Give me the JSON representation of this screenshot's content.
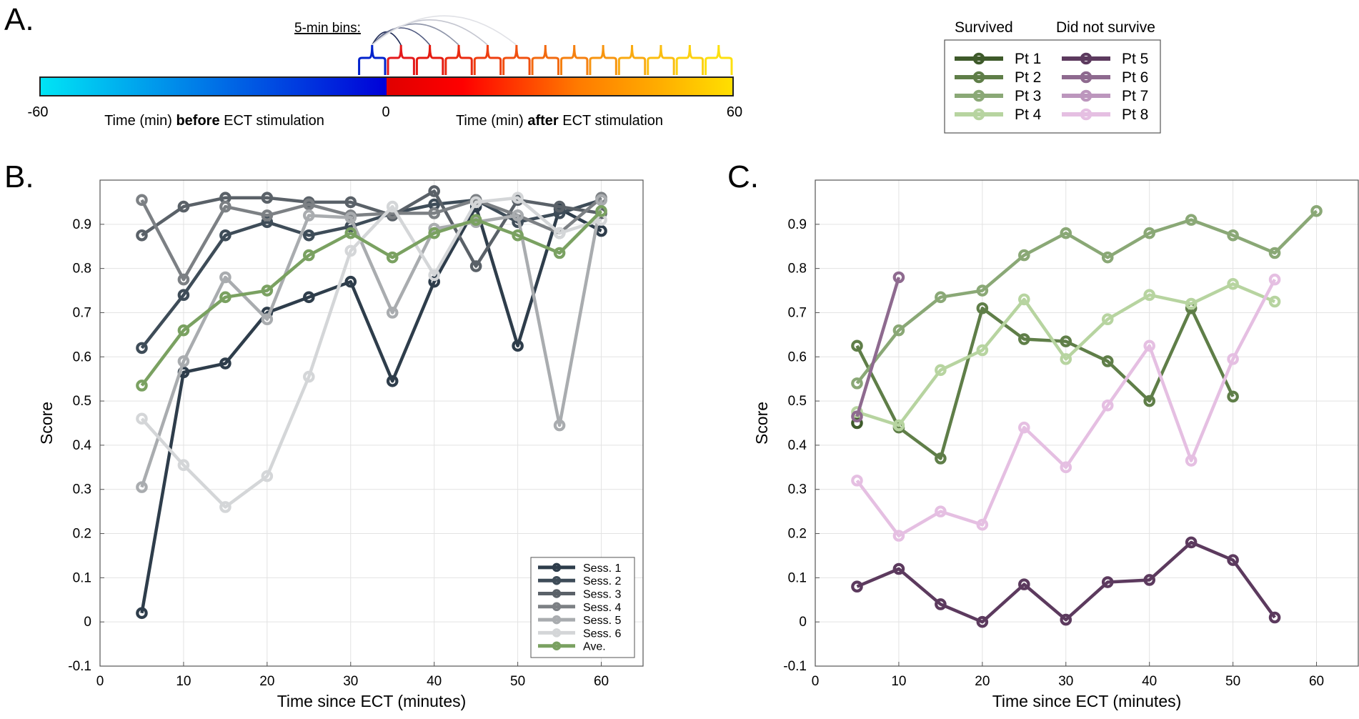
{
  "panel_labels": {
    "a": "A.",
    "b": "B.",
    "c": "C."
  },
  "timeline": {
    "bins_label": "5-min bins:",
    "tick_left": "-60",
    "tick_mid": "0",
    "tick_right": "60",
    "before_pre": "Time (min) ",
    "before_bold": "before",
    "before_post": " ECT stimulation",
    "after_pre": "Time (min) ",
    "after_bold": "after",
    "after_post": " ECT stimulation",
    "before_colors": [
      "#00e5f5",
      "#0000d8"
    ],
    "after_colors": [
      "#e00000",
      "#ff0000",
      "#ff7a00",
      "#ffb000",
      "#ffe000"
    ]
  },
  "legend_top": {
    "col1_title": "Survived",
    "col2_title": "Did not survive",
    "col1": [
      {
        "label": "Pt 1",
        "color": "#3e5a2a"
      },
      {
        "label": "Pt 2",
        "color": "#5f7e48"
      },
      {
        "label": "Pt 3",
        "color": "#8aa876"
      },
      {
        "label": "Pt 4",
        "color": "#b7d4a0"
      }
    ],
    "col2": [
      {
        "label": "Pt 5",
        "color": "#5c3a5e"
      },
      {
        "label": "Pt 6",
        "color": "#8e6a8f"
      },
      {
        "label": "Pt 7",
        "color": "#bc96bd"
      },
      {
        "label": "Pt 8",
        "color": "#e5bfe2"
      }
    ]
  },
  "chart_data": [
    {
      "type": "line",
      "panel": "B",
      "xlabel": "Time since ECT (minutes)",
      "ylabel": "Score",
      "xlim": [
        0,
        65
      ],
      "ylim": [
        -0.1,
        1.0
      ],
      "xticks": [
        0,
        10,
        20,
        30,
        40,
        50,
        60
      ],
      "yticks": [
        -0.1,
        0,
        0.1,
        0.2,
        0.3,
        0.4,
        0.5,
        0.6,
        0.7,
        0.8,
        0.9
      ],
      "ytick_labels": [
        "-0.1",
        "0",
        "0.1",
        "0.2",
        "0.3",
        "0.4",
        "0.5",
        "0.6",
        "0.7",
        "0.8",
        "0.9"
      ],
      "grid": true,
      "legend_position": "bottom-right",
      "x": [
        5,
        10,
        15,
        20,
        25,
        30,
        35,
        40,
        45,
        50,
        55,
        60
      ],
      "series": [
        {
          "name": "Sess. 1",
          "color": "#2e3d4b",
          "values": [
            0.02,
            0.565,
            0.585,
            0.7,
            0.735,
            0.77,
            0.545,
            0.77,
            0.94,
            0.625,
            0.935,
            0.885
          ]
        },
        {
          "name": "Sess. 2",
          "color": "#3e4c58",
          "values": [
            0.62,
            0.74,
            0.875,
            0.905,
            0.875,
            0.895,
            0.925,
            0.945,
            0.955,
            0.905,
            0.925,
            0.955
          ]
        },
        {
          "name": "Sess. 3",
          "color": "#5a6168",
          "values": [
            0.875,
            0.94,
            0.96,
            0.96,
            0.95,
            0.95,
            0.92,
            0.975,
            0.805,
            0.955,
            0.94,
            0.925
          ]
        },
        {
          "name": "Sess. 4",
          "color": "#7c8084",
          "values": [
            0.955,
            0.775,
            0.94,
            0.92,
            0.945,
            0.92,
            0.925,
            0.925,
            0.955,
            0.92,
            0.88,
            0.96
          ]
        },
        {
          "name": "Sess. 5",
          "color": "#a9acaf",
          "values": [
            0.305,
            0.59,
            0.78,
            0.685,
            0.92,
            0.915,
            0.7,
            0.89,
            0.905,
            0.92,
            0.445,
            0.955
          ]
        },
        {
          "name": "Sess. 6",
          "color": "#d4d6d8",
          "values": [
            0.46,
            0.355,
            0.26,
            0.33,
            0.555,
            0.84,
            0.94,
            0.785,
            0.95,
            0.96,
            0.88,
            0.91
          ]
        },
        {
          "name": "Ave.",
          "color": "#7aa161",
          "values": [
            0.535,
            0.66,
            0.735,
            0.75,
            0.83,
            0.88,
            0.825,
            0.88,
            0.91,
            0.875,
            0.835,
            0.93
          ]
        }
      ]
    },
    {
      "type": "line",
      "panel": "C",
      "xlabel": "Time since ECT (minutes)",
      "ylabel": "Score",
      "xlim": [
        0,
        65
      ],
      "ylim": [
        -0.1,
        1.0
      ],
      "xticks": [
        0,
        10,
        20,
        30,
        40,
        50,
        60
      ],
      "yticks": [
        -0.1,
        0,
        0.1,
        0.2,
        0.3,
        0.4,
        0.5,
        0.6,
        0.7,
        0.8,
        0.9
      ],
      "ytick_labels": [
        "-0.1",
        "0",
        "0.1",
        "0.2",
        "0.3",
        "0.4",
        "0.5",
        "0.6",
        "0.7",
        "0.8",
        "0.9"
      ],
      "grid": true,
      "series": [
        {
          "name": "Pt 1",
          "color": "#3e5a2a",
          "x": [
            5
          ],
          "values": [
            0.45
          ]
        },
        {
          "name": "Pt 2",
          "color": "#5f7e48",
          "x": [
            5,
            10,
            15,
            20,
            25,
            30,
            35,
            40,
            45,
            50
          ],
          "values": [
            0.625,
            0.44,
            0.37,
            0.71,
            0.64,
            0.635,
            0.59,
            0.5,
            0.71,
            0.51
          ]
        },
        {
          "name": "Pt 3",
          "color": "#8aa876",
          "x": [
            5,
            10,
            15,
            20,
            25,
            30,
            35,
            40,
            45,
            50,
            55,
            60
          ],
          "values": [
            0.54,
            0.66,
            0.735,
            0.75,
            0.83,
            0.88,
            0.825,
            0.88,
            0.91,
            0.875,
            0.835,
            0.93
          ]
        },
        {
          "name": "Pt 4",
          "color": "#b7d4a0",
          "x": [
            5,
            10,
            15,
            20,
            25,
            30,
            35,
            40,
            45,
            50,
            55
          ],
          "values": [
            0.475,
            0.445,
            0.57,
            0.615,
            0.73,
            0.595,
            0.685,
            0.74,
            0.72,
            0.765,
            0.725
          ]
        },
        {
          "name": "Pt 5",
          "color": "#5c3a5e",
          "x": [
            5,
            10,
            15,
            20,
            25,
            30,
            35,
            40,
            45,
            50,
            55
          ],
          "values": [
            0.08,
            0.12,
            0.04,
            0.0,
            0.085,
            0.005,
            0.09,
            0.095,
            0.18,
            0.14,
            0.01
          ]
        },
        {
          "name": "Pt 6",
          "color": "#8e6a8f",
          "x": [
            5,
            10
          ],
          "values": [
            0.465,
            0.78
          ]
        },
        {
          "name": "Pt 7",
          "color": "#bc96bd",
          "x": [],
          "values": []
        },
        {
          "name": "Pt 8",
          "color": "#e5bfe2",
          "x": [
            5,
            10,
            15,
            20,
            25,
            30,
            35,
            40,
            45,
            50,
            55
          ],
          "values": [
            0.32,
            0.195,
            0.25,
            0.22,
            0.44,
            0.35,
            0.49,
            0.625,
            0.365,
            0.595,
            0.775
          ]
        }
      ]
    }
  ]
}
